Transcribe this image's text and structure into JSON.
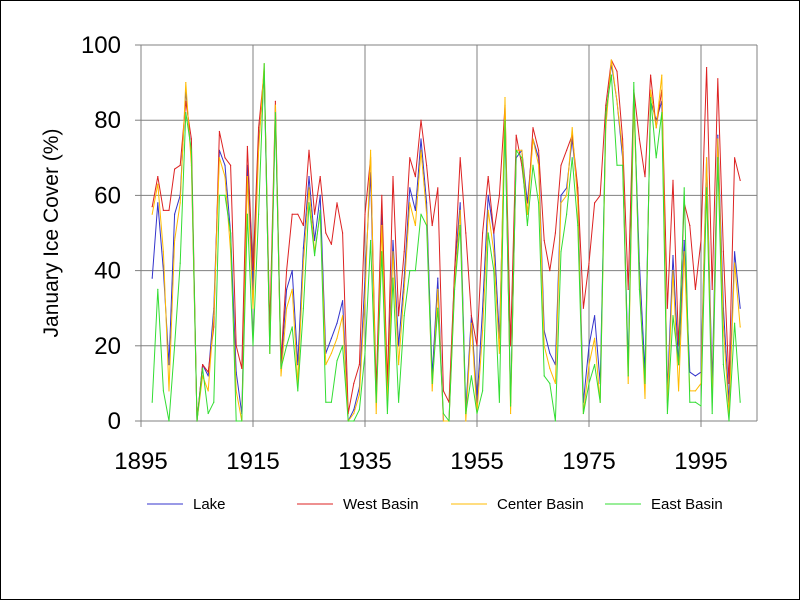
{
  "chart_data": {
    "type": "line",
    "title": "",
    "xlabel": "",
    "ylabel": "January Ice Cover (%)",
    "xlim": [
      1895,
      2005
    ],
    "ylim": [
      0,
      100
    ],
    "xticks": [
      1895,
      1915,
      1935,
      1955,
      1975,
      1995
    ],
    "yticks": [
      0,
      20,
      40,
      60,
      80,
      100
    ],
    "grid": true,
    "legend_position": "bottom",
    "x": [
      1897,
      1898,
      1899,
      1900,
      1901,
      1902,
      1903,
      1904,
      1905,
      1906,
      1907,
      1908,
      1909,
      1910,
      1911,
      1912,
      1913,
      1914,
      1915,
      1916,
      1917,
      1918,
      1919,
      1920,
      1921,
      1922,
      1923,
      1924,
      1925,
      1926,
      1927,
      1928,
      1929,
      1930,
      1931,
      1932,
      1933,
      1934,
      1935,
      1936,
      1937,
      1938,
      1939,
      1940,
      1941,
      1942,
      1943,
      1944,
      1945,
      1946,
      1947,
      1948,
      1949,
      1950,
      1951,
      1952,
      1953,
      1954,
      1955,
      1956,
      1957,
      1958,
      1959,
      1960,
      1961,
      1962,
      1963,
      1964,
      1965,
      1966,
      1967,
      1968,
      1969,
      1970,
      1971,
      1972,
      1973,
      1974,
      1975,
      1976,
      1977,
      1978,
      1979,
      1980,
      1981,
      1982,
      1983,
      1984,
      1985,
      1986,
      1987,
      1988,
      1989,
      1990,
      1991,
      1992,
      1993,
      1994,
      1995,
      1996,
      1997,
      1998,
      1999,
      2000,
      2001,
      2002
    ],
    "series": [
      {
        "name": "Lake",
        "color": "#3333cc",
        "values": [
          38,
          58,
          40,
          15,
          55,
          60,
          88,
          70,
          0,
          15,
          12,
          30,
          72,
          68,
          50,
          13,
          2,
          68,
          35,
          74,
          92,
          20,
          82,
          14,
          35,
          40,
          15,
          46,
          65,
          48,
          60,
          18,
          22,
          26,
          32,
          0,
          3,
          9,
          38,
          66,
          5,
          55,
          8,
          48,
          20,
          38,
          62,
          56,
          75,
          58,
          12,
          38,
          0,
          0,
          40,
          58,
          3,
          28,
          5,
          30,
          60,
          50,
          22,
          80,
          5,
          70,
          72,
          58,
          75,
          70,
          24,
          18,
          15,
          60,
          62,
          75,
          60,
          5,
          20,
          28,
          10,
          80,
          95,
          85,
          70,
          15,
          86,
          42,
          13,
          85,
          80,
          85,
          8,
          44,
          15,
          48,
          13,
          12,
          13,
          70,
          10,
          76,
          30,
          5,
          45,
          30
        ]
      },
      {
        "name": "West Basin",
        "color": "#dd2222",
        "values": [
          57,
          65,
          56,
          56,
          67,
          68,
          85,
          75,
          0,
          15,
          13,
          25,
          77,
          70,
          68,
          20,
          14,
          73,
          40,
          78,
          93,
          25,
          85,
          16,
          40,
          55,
          55,
          52,
          72,
          55,
          65,
          50,
          47,
          58,
          50,
          2,
          10,
          15,
          55,
          70,
          8,
          60,
          10,
          65,
          28,
          45,
          70,
          65,
          80,
          68,
          52,
          62,
          8,
          5,
          40,
          70,
          50,
          28,
          20,
          50,
          65,
          50,
          60,
          84,
          20,
          76,
          68,
          55,
          78,
          72,
          48,
          40,
          50,
          68,
          72,
          76,
          62,
          30,
          42,
          58,
          60,
          84,
          96,
          93,
          75,
          35,
          88,
          75,
          65,
          92,
          78,
          88,
          30,
          64,
          20,
          58,
          52,
          35,
          48,
          94,
          35,
          91,
          45,
          10,
          70,
          64
        ]
      },
      {
        "name": "Center Basin",
        "color": "#ffbb00",
        "values": [
          55,
          63,
          45,
          8,
          48,
          58,
          90,
          68,
          0,
          12,
          8,
          28,
          70,
          65,
          45,
          8,
          0,
          65,
          30,
          72,
          95,
          18,
          84,
          12,
          30,
          35,
          10,
          42,
          62,
          45,
          55,
          15,
          18,
          22,
          28,
          0,
          2,
          7,
          33,
          72,
          2,
          52,
          5,
          45,
          15,
          35,
          58,
          52,
          72,
          55,
          8,
          35,
          0,
          0,
          36,
          56,
          0,
          26,
          2,
          24,
          56,
          45,
          18,
          86,
          2,
          72,
          72,
          55,
          75,
          68,
          20,
          14,
          10,
          58,
          60,
          78,
          58,
          2,
          15,
          22,
          5,
          78,
          96,
          85,
          72,
          10,
          85,
          38,
          6,
          88,
          78,
          92,
          5,
          40,
          8,
          45,
          8,
          8,
          10,
          70,
          5,
          75,
          25,
          2,
          42,
          25
        ]
      },
      {
        "name": "East Basin",
        "color": "#33dd33",
        "values": [
          5,
          35,
          8,
          0,
          20,
          42,
          82,
          72,
          0,
          14,
          2,
          5,
          60,
          60,
          50,
          0,
          0,
          55,
          20,
          55,
          95,
          18,
          82,
          14,
          20,
          25,
          8,
          30,
          58,
          44,
          56,
          5,
          5,
          16,
          20,
          0,
          0,
          3,
          18,
          48,
          5,
          45,
          2,
          38,
          5,
          28,
          40,
          40,
          55,
          52,
          10,
          30,
          2,
          0,
          35,
          52,
          2,
          12,
          2,
          8,
          50,
          40,
          5,
          80,
          4,
          72,
          70,
          52,
          68,
          58,
          12,
          10,
          0,
          45,
          55,
          70,
          52,
          2,
          10,
          15,
          5,
          82,
          92,
          68,
          68,
          12,
          90,
          35,
          10,
          86,
          70,
          82,
          2,
          28,
          15,
          62,
          5,
          5,
          4,
          62,
          2,
          70,
          15,
          0,
          26,
          5
        ]
      }
    ]
  }
}
